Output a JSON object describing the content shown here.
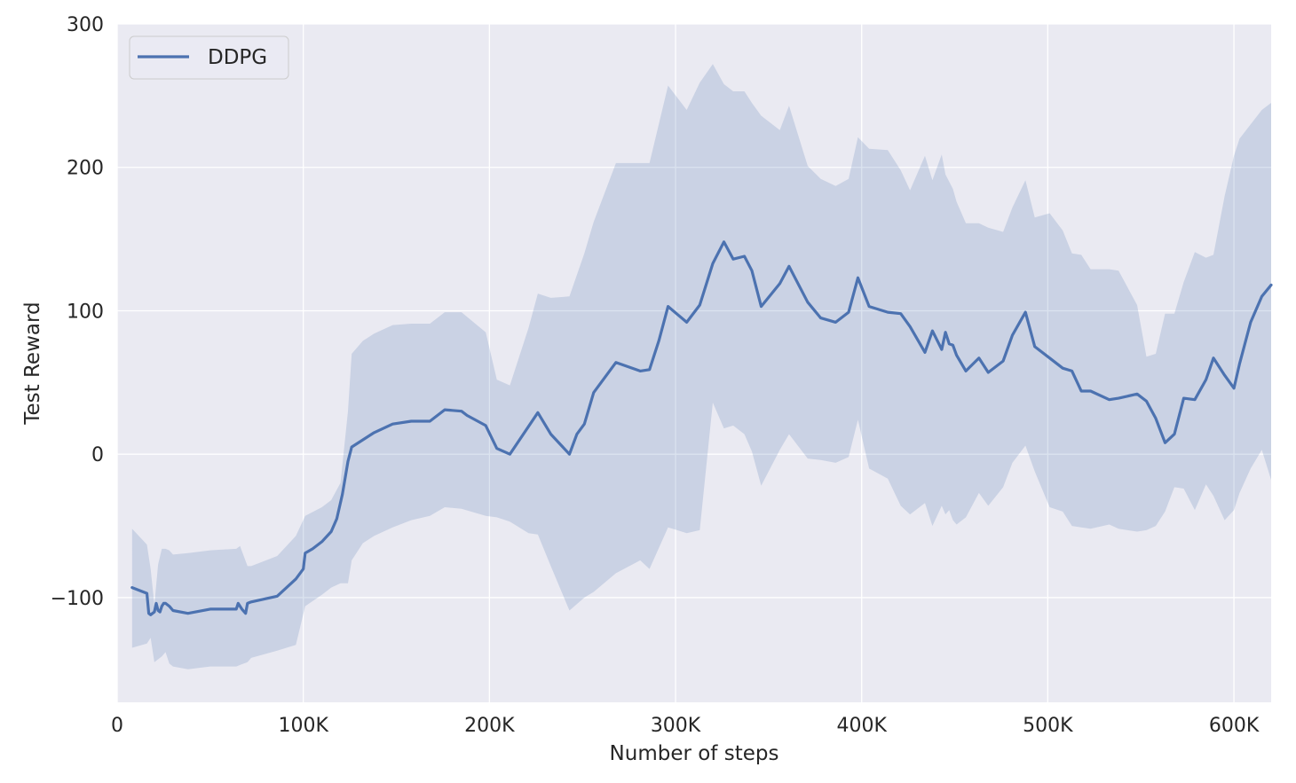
{
  "chart_data": {
    "type": "line",
    "title": "",
    "xlabel": "Number of steps",
    "ylabel": "Test Reward",
    "xlim": [
      0,
      620000
    ],
    "ylim": [
      -173,
      300
    ],
    "xticks": [
      0,
      100000,
      200000,
      300000,
      400000,
      500000,
      600000
    ],
    "xtick_labels": [
      "0",
      "100K",
      "200K",
      "300K",
      "400K",
      "500K",
      "600K"
    ],
    "yticks": [
      -100,
      0,
      100,
      200,
      300
    ],
    "ytick_labels": [
      "−100",
      "0",
      "100",
      "200",
      "300"
    ],
    "grid": true,
    "legend_position": "top-left",
    "colors": {
      "line": "#4c72b0",
      "band": "#4c72b0",
      "background": "#eaeaf2",
      "grid": "#ffffff"
    },
    "series": [
      {
        "name": "DDPG",
        "x": [
          8000,
          16000,
          17000,
          18000,
          19000,
          20000,
          21000,
          22000,
          23000,
          24000,
          25000,
          26000,
          28000,
          30000,
          38000,
          50000,
          64000,
          65000,
          67000,
          69000,
          70000,
          72000,
          86000,
          96000,
          100000,
          101000,
          105000,
          110000,
          115000,
          118000,
          121000,
          124000,
          126000,
          132000,
          138000,
          148000,
          158000,
          168000,
          176000,
          185000,
          188000,
          198000,
          204000,
          211000,
          226000,
          233000,
          243000,
          247000,
          251000,
          256000,
          268000,
          281000,
          286000,
          291000,
          296000,
          306000,
          313000,
          320000,
          326000,
          331000,
          337000,
          341000,
          346000,
          356000,
          361000,
          371000,
          378000,
          386000,
          393000,
          398000,
          404000,
          414000,
          421000,
          426000,
          434000,
          438000,
          443000,
          445000,
          447000,
          449000,
          451000,
          456000,
          463000,
          468000,
          476000,
          481000,
          488000,
          493000,
          501000,
          508000,
          513000,
          518000,
          523000,
          533000,
          538000,
          548000,
          553000,
          558000,
          563000,
          568000,
          573000,
          579000,
          585000,
          589000,
          595000,
          600000,
          603000,
          609000,
          615000,
          620000
        ],
        "values": [
          -93,
          -97,
          -111,
          -112,
          -111,
          -110,
          -104,
          -109,
          -110,
          -106,
          -104,
          -104,
          -106,
          -109,
          -111,
          -108,
          -108,
          -104,
          -108,
          -111,
          -104,
          -103,
          -99,
          -87,
          -80,
          -69,
          -66,
          -61,
          -54,
          -45,
          -28,
          -5,
          5,
          10,
          15,
          21,
          23,
          23,
          31,
          30,
          27,
          20,
          4,
          0,
          29,
          14,
          0,
          14,
          21,
          43,
          64,
          58,
          59,
          79,
          103,
          92,
          104,
          133,
          148,
          136,
          138,
          128,
          103,
          119,
          131,
          106,
          95,
          92,
          99,
          123,
          103,
          99,
          98,
          89,
          71,
          86,
          73,
          85,
          77,
          76,
          69,
          58,
          67,
          57,
          65,
          83,
          99,
          75,
          67,
          60,
          58,
          44,
          44,
          38,
          39,
          42,
          37,
          25,
          8,
          14,
          39,
          38,
          52,
          67,
          55,
          46,
          63,
          92,
          110,
          118
        ]
      }
    ],
    "band": {
      "x": [
        8000,
        16000,
        18000,
        20000,
        22000,
        24000,
        26000,
        28000,
        30000,
        38000,
        50000,
        64000,
        66000,
        70000,
        72000,
        86000,
        96000,
        101000,
        110000,
        115000,
        120000,
        124000,
        126000,
        132000,
        138000,
        148000,
        158000,
        168000,
        176000,
        185000,
        198000,
        204000,
        211000,
        221000,
        226000,
        233000,
        243000,
        251000,
        256000,
        268000,
        281000,
        286000,
        296000,
        306000,
        313000,
        320000,
        326000,
        331000,
        337000,
        341000,
        346000,
        356000,
        361000,
        371000,
        378000,
        386000,
        393000,
        398000,
        404000,
        414000,
        421000,
        426000,
        434000,
        438000,
        443000,
        445000,
        447000,
        449000,
        451000,
        456000,
        463000,
        468000,
        476000,
        481000,
        488000,
        493000,
        501000,
        508000,
        513000,
        518000,
        523000,
        533000,
        538000,
        548000,
        553000,
        558000,
        563000,
        568000,
        573000,
        579000,
        585000,
        589000,
        595000,
        600000,
        603000,
        609000,
        615000,
        620000
      ],
      "upper": [
        -52,
        -63,
        -80,
        -105,
        -77,
        -66,
        -66,
        -67,
        -70,
        -69,
        -67,
        -66,
        -64,
        -78,
        -78,
        -71,
        -57,
        -43,
        -37,
        -32,
        -20,
        30,
        70,
        79,
        84,
        90,
        91,
        91,
        99,
        99,
        85,
        52,
        48,
        88,
        112,
        109,
        110,
        140,
        162,
        203,
        203,
        203,
        257,
        240,
        259,
        272,
        258,
        253,
        253,
        245,
        236,
        226,
        243,
        201,
        192,
        187,
        192,
        221,
        213,
        212,
        198,
        184,
        208,
        191,
        209,
        195,
        190,
        185,
        176,
        161,
        161,
        158,
        155,
        172,
        191,
        165,
        168,
        156,
        140,
        139,
        129,
        129,
        128,
        104,
        68,
        70,
        98,
        98,
        120,
        141,
        137,
        139,
        180,
        208,
        220,
        230,
        240,
        245
      ],
      "lower": [
        -135,
        -132,
        -128,
        -145,
        -143,
        -141,
        -138,
        -146,
        -148,
        -150,
        -148,
        -148,
        -147,
        -145,
        -142,
        -137,
        -133,
        -106,
        -98,
        -93,
        -90,
        -90,
        -74,
        -62,
        -57,
        -51,
        -46,
        -43,
        -37,
        -38,
        -43,
        -44,
        -47,
        -55,
        -56,
        -78,
        -109,
        -100,
        -96,
        -83,
        -74,
        -80,
        -51,
        -55,
        -53,
        36,
        18,
        20,
        14,
        2,
        -22,
        3,
        14,
        -3,
        -4,
        -6,
        -2,
        24,
        -10,
        -17,
        -36,
        -42,
        -34,
        -50,
        -36,
        -42,
        -39,
        -46,
        -49,
        -44,
        -27,
        -36,
        -23,
        -6,
        6,
        -12,
        -37,
        -40,
        -50,
        -51,
        -52,
        -49,
        -52,
        -54,
        -53,
        -50,
        -40,
        -23,
        -24,
        -39,
        -21,
        -29,
        -46,
        -39,
        -27,
        -10,
        3,
        -18
      ]
    }
  }
}
